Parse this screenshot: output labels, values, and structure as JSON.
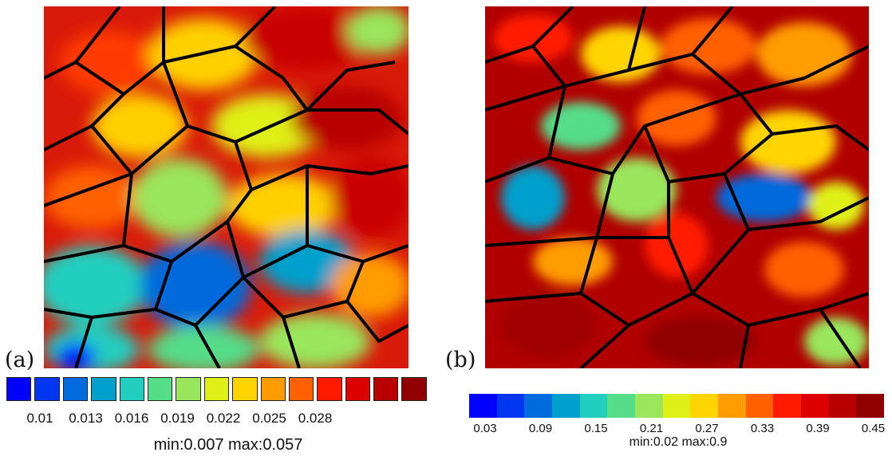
{
  "figure": {
    "panels": [
      {
        "label": "(a)",
        "colorbar": {
          "colors": [
            "#0000ff",
            "#0036f0",
            "#006bdc",
            "#00a0cc",
            "#22cfbf",
            "#55dd88",
            "#9ae65c",
            "#dff019",
            "#ffd400",
            "#ff9c00",
            "#ff6000",
            "#ff1a00",
            "#dc0000",
            "#b80000",
            "#900000"
          ],
          "tick_labels": [
            "0.01",
            "0.013",
            "0.016",
            "0.019",
            "0.022",
            "0.025",
            "0.028"
          ],
          "range_text": "min:0.007 max:0.057"
        }
      },
      {
        "label": "(b)",
        "colorbar": {
          "colors": [
            "#0000ff",
            "#0036f0",
            "#006bdc",
            "#00a0cc",
            "#22cfbf",
            "#55dd88",
            "#9ae65c",
            "#dff019",
            "#ffd400",
            "#ff9c00",
            "#ff6000",
            "#ff1a00",
            "#dc0000",
            "#b80000",
            "#900000"
          ],
          "tick_labels": [
            "0.03",
            "0.09",
            "0.15",
            "0.21",
            "0.27",
            "0.33",
            "0.39",
            "0.45"
          ],
          "range_text": "min:0.02 max:0.9"
        }
      }
    ]
  }
}
